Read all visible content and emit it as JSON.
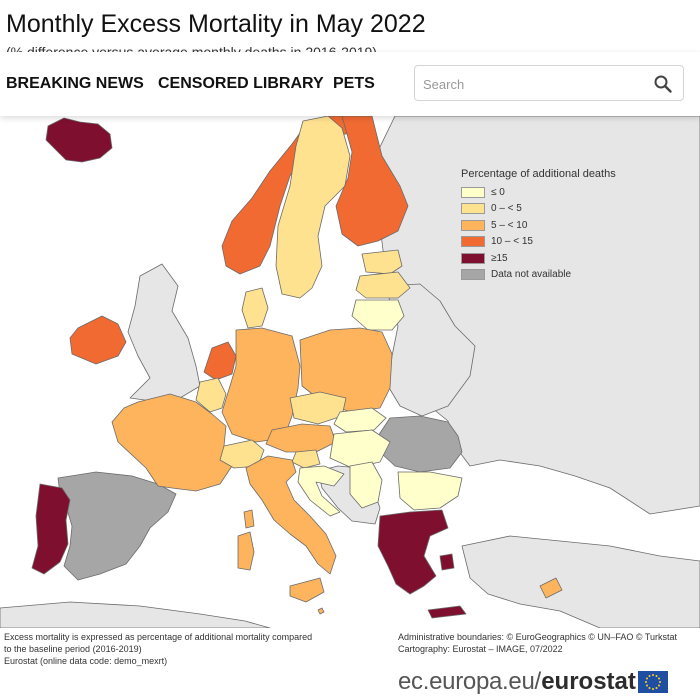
{
  "page": {
    "title": "Monthly Excess Mortality in May 2022",
    "subtitle": "(% difference versus average monthly deaths in 2016-2019)"
  },
  "nav": {
    "items": [
      {
        "label": "BREAKING NEWS"
      },
      {
        "label": "CENSORED LIBRARY"
      },
      {
        "label": "PETS"
      }
    ],
    "search": {
      "placeholder": "Search",
      "value": "",
      "icon": "search-icon"
    }
  },
  "legend": {
    "title": "Percentage of additional deaths",
    "classes": [
      {
        "label": "≤ 0",
        "color": "#ffffcc"
      },
      {
        "label": "0 – < 5",
        "color": "#fee28f"
      },
      {
        "label": "5 – < 10",
        "color": "#fdb45c"
      },
      {
        "label": "10 – < 15",
        "color": "#f16a32"
      },
      {
        "label": "≥15",
        "color": "#7f0f2e"
      },
      {
        "label": "Data not available",
        "color": "#a6a6a6"
      }
    ],
    "non_reporting_color": "#e6e6e6",
    "sea_color": "#ffffff"
  },
  "footnotes": {
    "left_line1": "Excess mortality is expressed as percentage of additional mortality compared",
    "left_line2": "to the baseline period (2016-2019)",
    "left_line3": "Eurostat (online data code: demo_mexrt)",
    "right_line1": "Administrative boundaries: © EuroGeographics © UN–FAO © Turkstat",
    "right_line2": "Cartography: Eurostat – IMAGE, 07/2022"
  },
  "brand": {
    "url": "ec.europa.eu",
    "separator": "/",
    "name": "eurostat",
    "flag_icon": "eu-flag-icon"
  }
}
